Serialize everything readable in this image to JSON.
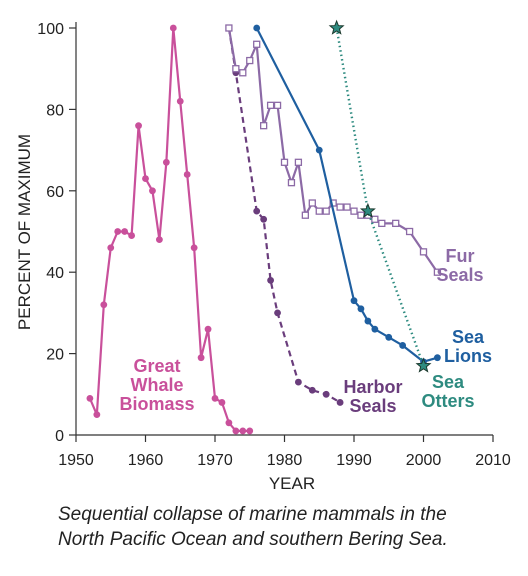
{
  "chart_data": {
    "type": "line",
    "xlabel": "YEAR",
    "ylabel": "PERCENT OF MAXIMUM",
    "xlim": [
      1950,
      2010
    ],
    "ylim": [
      0,
      100
    ],
    "xticks": [
      1950,
      1960,
      1970,
      1980,
      1990,
      2000,
      2010
    ],
    "yticks": [
      0,
      20,
      40,
      60,
      80,
      100
    ],
    "grid": false,
    "colors": {
      "whale": "#c9509b",
      "harbor": "#6a3d7c",
      "fur": "#8c6aa6",
      "sealion": "#1f5fa0",
      "otter": "#2e8b80"
    },
    "series": [
      {
        "key": "whale",
        "name": "Great Whale Biomass",
        "label_lines": [
          "Great",
          "Whale",
          "Biomass"
        ],
        "marker": "dot",
        "dash": "solid",
        "x": [
          1952,
          1953,
          1954,
          1955,
          1956,
          1957,
          1958,
          1959,
          1960,
          1961,
          1962,
          1963,
          1964,
          1965,
          1966,
          1967,
          1968,
          1969,
          1970,
          1971,
          1972,
          1973,
          1974,
          1975
        ],
        "y": [
          9,
          5,
          32,
          46,
          50,
          50,
          49,
          76,
          63,
          60,
          48,
          67,
          100,
          82,
          64,
          46,
          19,
          26,
          9,
          8,
          3,
          1,
          1,
          1
        ]
      },
      {
        "key": "harbor",
        "name": "Harbor Seals",
        "label_lines": [
          "Harbor",
          "Seals"
        ],
        "marker": "dot",
        "dash": "dashed",
        "x": [
          1972,
          1973,
          1976,
          1977,
          1978,
          1979,
          1982,
          1984,
          1986,
          1988
        ],
        "y": [
          100,
          89,
          55,
          53,
          38,
          30,
          13,
          11,
          10,
          8
        ]
      },
      {
        "key": "fur",
        "name": "Fur Seals",
        "label_lines": [
          "Fur",
          "Seals"
        ],
        "marker": "square",
        "dash": "solid",
        "x": [
          1972,
          1973,
          1974,
          1975,
          1976,
          1977,
          1978,
          1979,
          1980,
          1981,
          1982,
          1983,
          1984,
          1985,
          1986,
          1987,
          1988,
          1989,
          1990,
          1991,
          1992,
          1993,
          1994,
          1996,
          1998,
          2000,
          2002
        ],
        "y": [
          100,
          90,
          89,
          92,
          96,
          76,
          81,
          81,
          67,
          62,
          67,
          54,
          57,
          55,
          55,
          57,
          56,
          56,
          55,
          54,
          54,
          53,
          52,
          52,
          50,
          45,
          40
        ]
      },
      {
        "key": "sealion",
        "name": "Sea Lions",
        "label_lines": [
          "Sea",
          "Lions"
        ],
        "marker": "dot",
        "dash": "solid",
        "x": [
          1976,
          1985,
          1990,
          1991,
          1992,
          1993,
          1995,
          1997,
          2000,
          2002
        ],
        "y": [
          100,
          70,
          33,
          31,
          28,
          26,
          24,
          22,
          18,
          19
        ]
      },
      {
        "key": "otter",
        "name": "Sea Otters",
        "label_lines": [
          "Sea",
          "Otters"
        ],
        "marker": "star",
        "dash": "dotted",
        "x": [
          1987.5,
          1992,
          2000
        ],
        "y": [
          100,
          55,
          17
        ]
      }
    ]
  },
  "caption": {
    "line1": "Sequential collapse of marine mammals in the",
    "line2": "North Pacific Ocean and southern Bering Sea."
  }
}
